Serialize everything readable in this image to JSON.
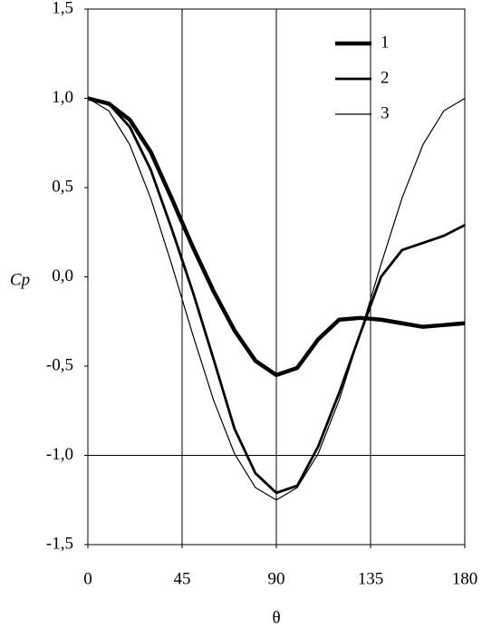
{
  "chart_data": {
    "type": "line",
    "xlabel": "θ",
    "ylabel": "Cp",
    "x": [
      0,
      10,
      20,
      30,
      40,
      50,
      60,
      70,
      80,
      90,
      100,
      110,
      120,
      130,
      140,
      150,
      160,
      170,
      180
    ],
    "series": [
      {
        "name": "1",
        "color": "#000000",
        "width": 4.5,
        "values": [
          1.0,
          0.97,
          0.88,
          0.7,
          0.44,
          0.17,
          -0.08,
          -0.3,
          -0.47,
          -0.55,
          -0.51,
          -0.35,
          -0.24,
          -0.23,
          -0.24,
          -0.26,
          -0.28,
          -0.27,
          -0.26
        ]
      },
      {
        "name": "2",
        "color": "#000000",
        "width": 2.8,
        "values": [
          1.0,
          0.97,
          0.84,
          0.6,
          0.27,
          -0.08,
          -0.46,
          -0.85,
          -1.1,
          -1.21,
          -1.17,
          -0.95,
          -0.65,
          -0.32,
          0.0,
          0.15,
          0.19,
          0.23,
          0.29
        ]
      },
      {
        "name": "3",
        "color": "#000000",
        "width": 1.2,
        "values": [
          1.0,
          0.93,
          0.74,
          0.44,
          0.07,
          -0.32,
          -0.69,
          -0.99,
          -1.18,
          -1.25,
          -1.18,
          -0.99,
          -0.69,
          -0.32,
          0.07,
          0.44,
          0.74,
          0.93,
          1.0
        ]
      }
    ],
    "xlim": [
      0,
      180
    ],
    "xticks": [
      0,
      45,
      90,
      135,
      180
    ],
    "ylim": [
      -1.5,
      1.5
    ],
    "yticks": [
      {
        "value": -1.5,
        "label": "-1,5"
      },
      {
        "value": -1.0,
        "label": "-1,0"
      },
      {
        "value": -0.5,
        "label": "-0,5"
      },
      {
        "value": 0,
        "label": "0,0"
      },
      {
        "value": 0.5,
        "label": "0,5"
      },
      {
        "value": 1.0,
        "label": "1,0"
      },
      {
        "value": 1.5,
        "label": "1,5"
      }
    ],
    "xgrid": [
      45,
      90,
      135
    ],
    "ygrid": [
      -1.0
    ],
    "legend": "upper right"
  }
}
